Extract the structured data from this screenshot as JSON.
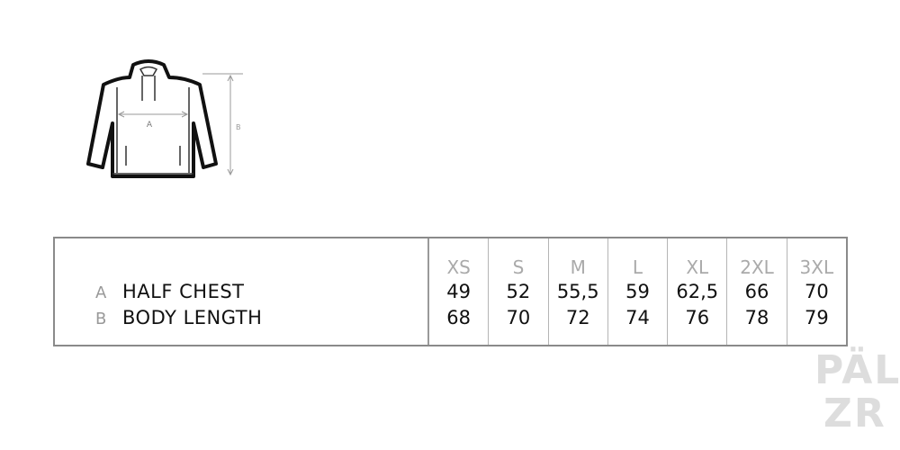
{
  "diagram": {
    "label_a": "A",
    "label_b": "B"
  },
  "table": {
    "rows": [
      {
        "letter": "A",
        "label": "HALF CHEST"
      },
      {
        "letter": "B",
        "label": "BODY LENGTH"
      }
    ],
    "columns": [
      {
        "size": "XS",
        "a": "49",
        "b": "68"
      },
      {
        "size": "S",
        "a": "52",
        "b": "70"
      },
      {
        "size": "M",
        "a": "55,5",
        "b": "72"
      },
      {
        "size": "L",
        "a": "59",
        "b": "74"
      },
      {
        "size": "XL",
        "a": "62,5",
        "b": "76"
      },
      {
        "size": "2XL",
        "a": "66",
        "b": "78"
      },
      {
        "size": "3XL",
        "a": "70",
        "b": "79"
      }
    ]
  },
  "watermark": {
    "line1": "PÄL",
    "line2": "ZR"
  }
}
